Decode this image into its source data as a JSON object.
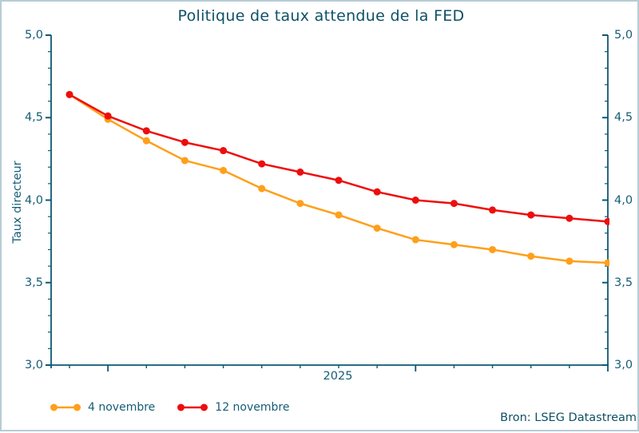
{
  "title": "Politique de taux attendue de la FED",
  "source": "Bron: LSEG Datastream",
  "colors": {
    "accent_text": "#0e5873",
    "axis": "#0e5873",
    "border": "#b6ccd6",
    "series_orange": "#ff9f1a",
    "series_red": "#ee0d0d"
  },
  "chart_data": {
    "type": "line",
    "title": "Politique de taux attendue de la FED",
    "ylabel": "Taux directeur",
    "xlabel": "2025",
    "ylim": [
      3.0,
      5.0
    ],
    "y_major_ticks": [
      5.0,
      4.5,
      4.0,
      3.5,
      3.0
    ],
    "y_tick_labels": [
      "5,0",
      "4,5",
      "4,0",
      "3,5",
      "3,0"
    ],
    "y_minor_step": 0.1,
    "grid": false,
    "legend_position": "bottom-left",
    "x_tick_count": 14,
    "x_major_tick_indices": [
      1,
      9
    ],
    "x": [
      0,
      1,
      2,
      3,
      4,
      5,
      6,
      7,
      8,
      9,
      10,
      11,
      12,
      13,
      14
    ],
    "series": [
      {
        "name": "4 novembre",
        "color": "#ff9f1a",
        "values": [
          4.64,
          4.49,
          4.36,
          4.24,
          4.18,
          4.07,
          3.98,
          3.91,
          3.83,
          3.76,
          3.73,
          3.7,
          3.66,
          3.63,
          3.62
        ]
      },
      {
        "name": "12 novembre",
        "color": "#ee0d0d",
        "values": [
          4.64,
          4.51,
          4.42,
          4.35,
          4.3,
          4.22,
          4.17,
          4.12,
          4.05,
          4.0,
          3.98,
          3.94,
          3.91,
          3.89,
          3.87
        ]
      }
    ]
  }
}
